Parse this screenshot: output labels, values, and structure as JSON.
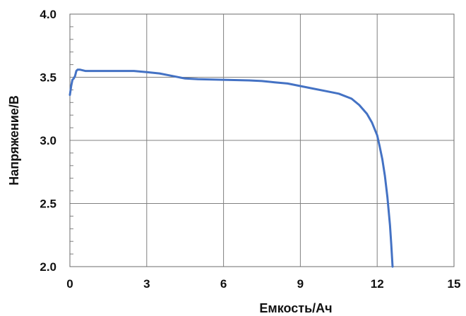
{
  "chart_data": {
    "type": "line",
    "title": "",
    "xlabel": "Емкость/Ач",
    "ylabel": "Напряжение/В",
    "xlim": [
      0,
      15
    ],
    "ylim": [
      2.0,
      4.0
    ],
    "x_ticks": [
      0,
      3,
      6,
      9,
      12,
      15
    ],
    "y_ticks": [
      2.0,
      2.5,
      3.0,
      3.5,
      4.0
    ],
    "x_tick_labels": [
      "0",
      "3",
      "6",
      "9",
      "12",
      "15"
    ],
    "y_tick_labels": [
      "2.0",
      "2.5",
      "3.0",
      "3.5",
      "4.0"
    ],
    "grid": true,
    "legend": "none",
    "series": [
      {
        "color": "#4472C4",
        "x": [
          0.0,
          0.05,
          0.1,
          0.15,
          0.2,
          0.25,
          0.3,
          0.4,
          0.6,
          1.0,
          2.0,
          2.5,
          3.0,
          3.5,
          4.0,
          4.5,
          5.0,
          6.0,
          7.0,
          7.5,
          8.0,
          8.5,
          9.0,
          9.5,
          10.0,
          10.5,
          11.0,
          11.3,
          11.6,
          11.8,
          12.0,
          12.1,
          12.2,
          12.3,
          12.4,
          12.5,
          12.55,
          12.6
        ],
        "y": [
          3.36,
          3.43,
          3.48,
          3.49,
          3.51,
          3.55,
          3.56,
          3.56,
          3.55,
          3.55,
          3.55,
          3.55,
          3.54,
          3.53,
          3.51,
          3.49,
          3.485,
          3.48,
          3.475,
          3.47,
          3.46,
          3.45,
          3.43,
          3.41,
          3.39,
          3.37,
          3.33,
          3.28,
          3.21,
          3.14,
          3.04,
          2.95,
          2.85,
          2.72,
          2.55,
          2.33,
          2.18,
          2.0
        ]
      }
    ]
  }
}
